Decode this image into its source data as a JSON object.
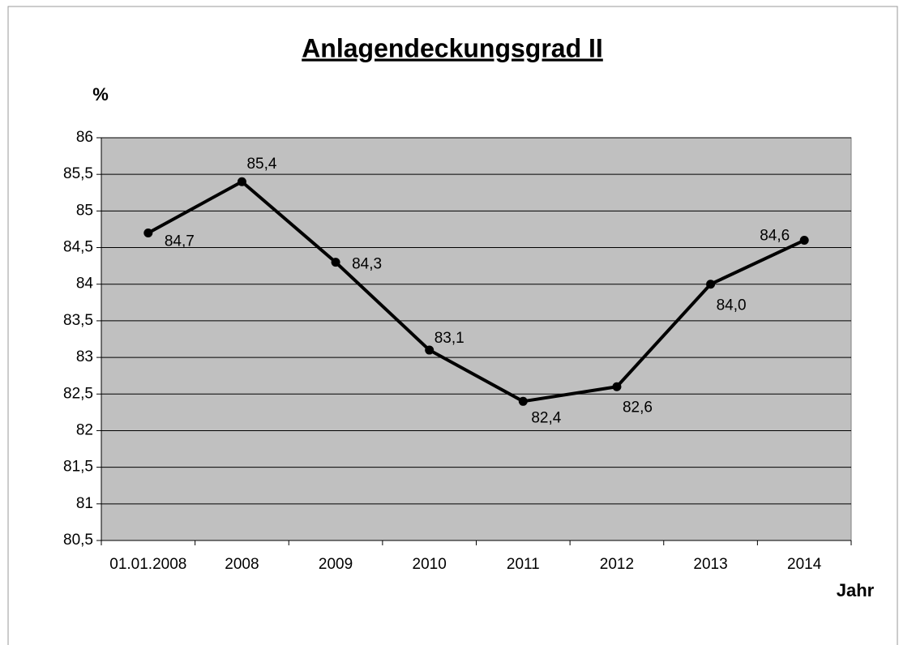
{
  "chart_data": {
    "type": "line",
    "title": "Anlagendeckungsgrad II",
    "y_label": "%",
    "x_label": "Jahr",
    "categories": [
      "01.01.2008",
      "2008",
      "2009",
      "2010",
      "2011",
      "2012",
      "2013",
      "2014"
    ],
    "series": [
      {
        "name": "Anlagendeckungsgrad II",
        "color": "#000000",
        "values": [
          84.7,
          85.4,
          84.3,
          83.1,
          82.4,
          82.6,
          84.0,
          84.6
        ],
        "value_labels": [
          "84,7",
          "85,4",
          "84,3",
          "83,1",
          "82,4",
          "82,6",
          "84,0",
          "84,6"
        ]
      }
    ],
    "ylim": [
      80.5,
      86
    ],
    "yticks": [
      {
        "value": 80.5,
        "label": "80,5"
      },
      81,
      {
        "value": 81.5,
        "label": "81,5"
      },
      82,
      {
        "value": 82.5,
        "label": "82,5"
      },
      83,
      {
        "value": 83.5,
        "label": "83,5"
      },
      84,
      {
        "value": 84.5,
        "label": "84,5"
      },
      85,
      {
        "value": 85.5,
        "label": "85,5"
      },
      86
    ],
    "grid": true,
    "plot_background": "#c0c0c0"
  }
}
